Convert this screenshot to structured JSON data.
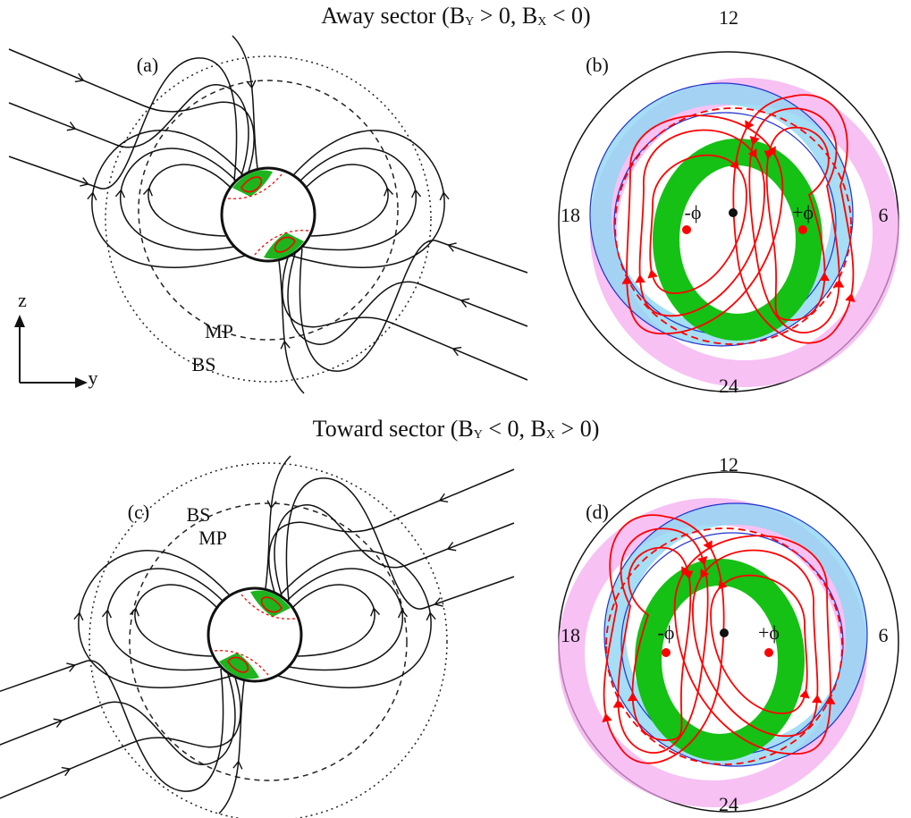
{
  "away_title": {
    "text_1": "Away sector (B",
    "sub_1": "Y",
    "text_2": " > 0, B",
    "sub_2": "X",
    "text_3": " < 0)"
  },
  "toward_title": {
    "text_1": "Toward sector (B",
    "sub_1": "Y",
    "text_2": " < 0, B",
    "sub_2": "X",
    "text_3": " > 0)"
  },
  "panel_a": {
    "label": "(a)",
    "mp": "MP",
    "bs": "BS"
  },
  "axes": {
    "z": "z",
    "y": "y"
  },
  "panel_b": {
    "label": "(b)",
    "hours": [
      "12",
      "6",
      "24",
      "18"
    ],
    "minus_phi": "-ϕ",
    "plus_phi": "+ϕ"
  },
  "panel_c": {
    "label": "(c)",
    "bs": "BS",
    "mp": "MP"
  },
  "panel_d": {
    "label": "(d)",
    "hours": [
      "12",
      "6",
      "24",
      "18"
    ],
    "minus_phi": "-ϕ",
    "plus_phi": "+ϕ"
  }
}
